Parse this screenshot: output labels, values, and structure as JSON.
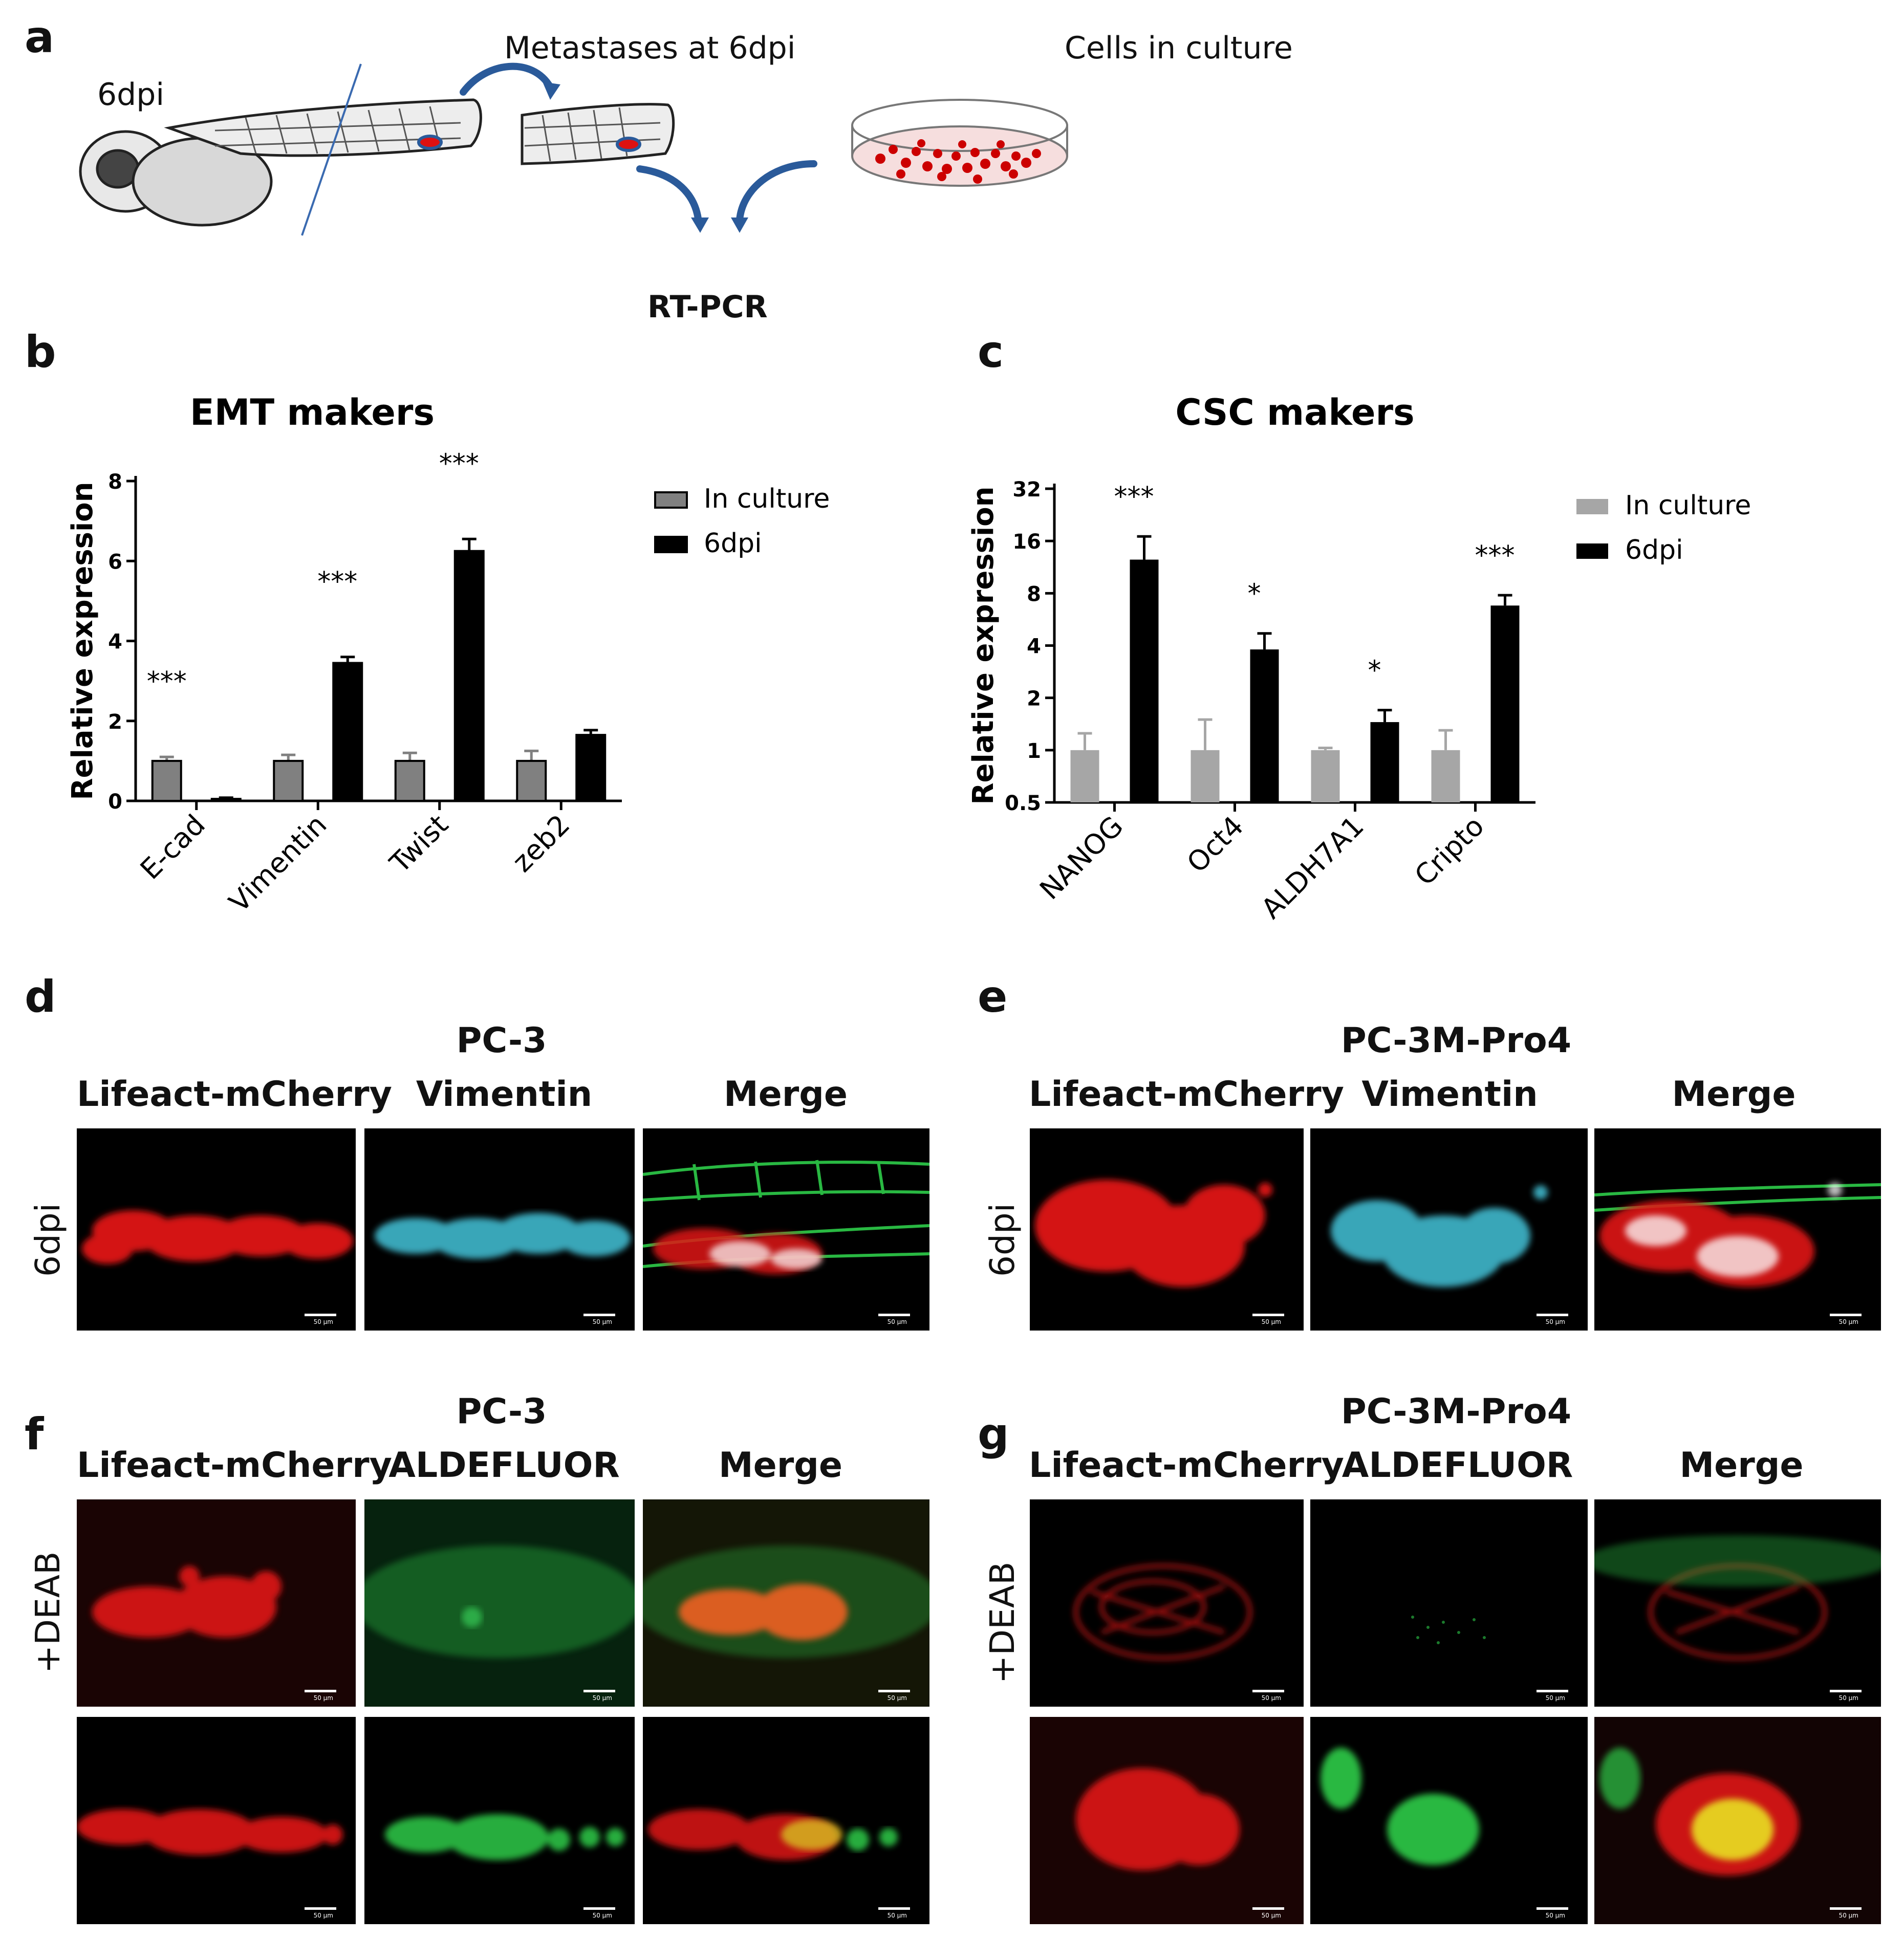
{
  "panels": {
    "a": "a",
    "b": "b",
    "c": "c",
    "d": "d",
    "e": "e",
    "f": "f",
    "g": "g"
  },
  "schematic": {
    "label_6dpi": "6dpi",
    "label_metastases": "Metastases at 6dpi",
    "label_cells": "Cells in culture",
    "label_rtpcr": "RT-PCR"
  },
  "chart_data": [
    {
      "type": "bar",
      "title": "EMT makers",
      "ylabel": "Relative expression",
      "xlabel": "",
      "ylim": [
        0,
        8
      ],
      "yticks": [
        "0",
        "2",
        "4",
        "6",
        "8"
      ],
      "categories": [
        "E-cad",
        "Vimentin",
        "Twist",
        "zeb2"
      ],
      "series": [
        {
          "name": "In culture",
          "color": "#808080",
          "values": [
            1.0,
            1.0,
            1.0,
            1.0
          ],
          "errors": [
            0.1,
            0.15,
            0.2,
            0.25
          ]
        },
        {
          "name": "6dpi",
          "color": "#000000",
          "values": [
            0.05,
            3.45,
            6.25,
            1.65
          ],
          "errors": [
            0.03,
            0.15,
            0.3,
            0.12
          ]
        }
      ],
      "significance": [
        "***",
        "***",
        "***",
        ""
      ],
      "legend": "top-right",
      "grid": false
    },
    {
      "type": "bar",
      "title": "CSC makers",
      "ylabel": "Relative expression",
      "xlabel": "",
      "yscale": "log2",
      "ylim": [
        0.5,
        32
      ],
      "yticks": [
        "0.5",
        "1",
        "2",
        "4",
        "8",
        "16",
        "32"
      ],
      "categories": [
        "NANOG",
        "Oct4",
        "ALDH7A1",
        "Cripto"
      ],
      "series": [
        {
          "name": "In culture",
          "color": "#a6a6a6",
          "values": [
            1.0,
            1.0,
            1.0,
            1.0
          ],
          "errors_upper": [
            1.25,
            1.5,
            1.03,
            1.3
          ]
        },
        {
          "name": "6dpi",
          "color": "#000000",
          "values": [
            12.5,
            3.8,
            1.45,
            6.8
          ],
          "errors_upper": [
            17.0,
            4.7,
            1.7,
            7.8
          ]
        }
      ],
      "significance": [
        "***",
        "*",
        "*",
        "***"
      ],
      "legend": "top-right",
      "grid": false
    }
  ],
  "micrographs": {
    "d_group": "PC-3",
    "e_group": "PC-3M-Pro4",
    "f_group": "PC-3",
    "g_group": "PC-3M-Pro4",
    "col_lifeact": "Lifeact-mCherry",
    "col_vimentin": "Vimentin",
    "col_aldefluor": "ALDEFLUOR",
    "col_merge": "Merge",
    "row_6dpi": "6dpi",
    "row_deab": "+DEAB",
    "scale": "50 µm",
    "colors": {
      "red": "#e01818",
      "cyan": "#3fb8cc",
      "green": "#2ecc4a",
      "white": "#ffffff"
    }
  }
}
